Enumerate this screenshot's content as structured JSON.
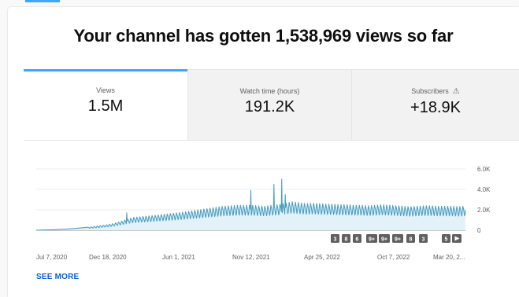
{
  "headline": "Your channel has gotten 1,538,969 views so far",
  "tabs": [
    {
      "label": "Views",
      "value": "1.5M"
    },
    {
      "label": "Watch time (hours)",
      "value": "191.2K"
    },
    {
      "label": "Subscribers",
      "value": "+18.9K"
    }
  ],
  "see_more": "SEE MORE",
  "colors": {
    "accent": "#3ea6ff",
    "line": "#4b9fc4",
    "fill": "#e3f1f8",
    "link": "#065fd4"
  },
  "markers": [
    "3",
    "8",
    "6",
    "9+",
    "9+",
    "9+",
    "8",
    "3",
    "5"
  ],
  "chart_data": {
    "type": "line",
    "x_tick_labels": [
      "Jul 7, 2020",
      "Dec 18, 2020",
      "Jun 1, 2021",
      "Nov 12, 2021",
      "Apr 25, 2022",
      "Oct 7, 2022",
      "Mar 20, 2..."
    ],
    "y_tick_labels": [
      "6.0K",
      "4.0K",
      "2.0K",
      "0"
    ],
    "ylim": [
      0,
      6000
    ],
    "grid": true,
    "series": [
      {
        "values": [
          0,
          20,
          40,
          60,
          100,
          140,
          200,
          260,
          340,
          420,
          520,
          640,
          820,
          1050,
          1250,
          1320,
          1380,
          1450,
          1530,
          1600,
          1680,
          1760,
          1850,
          1950,
          2050,
          2150,
          2250,
          2350,
          2400,
          2450,
          2450,
          2450,
          2400,
          2350,
          2450,
          2500,
          2650,
          2800,
          2700,
          2600,
          2650,
          2600,
          2550,
          2550,
          2500,
          2500,
          2450,
          2450,
          2400,
          2450,
          2500,
          2450,
          2400,
          2350,
          2300,
          2350,
          2400,
          2400,
          2350,
          2350,
          2350,
          2300,
          2350
        ],
        "start": "Jul 7, 2020",
        "end": "Mar 20, 2023",
        "weekly_cycle": true,
        "spikes": [
          {
            "at": "Nov 12, 2021",
            "value": 3900
          },
          {
            "at": "Jan 4, 2022",
            "value": 4500
          },
          {
            "at": "Jan 22, 2022",
            "value": 5000
          },
          {
            "at": "Jan 30, 2022",
            "value": 3500
          },
          {
            "at": "Jan 31, 2021",
            "value": 1700
          }
        ]
      }
    ]
  }
}
